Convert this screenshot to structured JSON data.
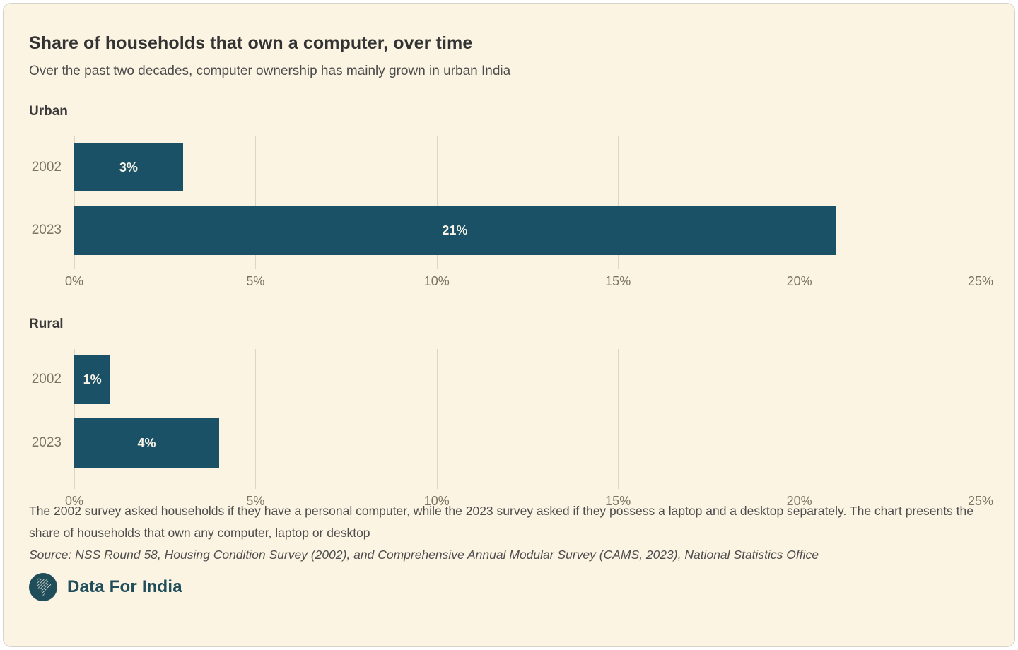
{
  "page": {
    "title": "Share of households that own a computer, over time",
    "subtitle": "Over the past two decades, computer ownership has mainly grown in urban India",
    "footnote": "The 2002 survey asked households if they have a personal computer, while the 2023 survey asked if they possess a laptop and a desktop separately. The chart presents the share of households that own any computer, laptop or desktop",
    "source": "Source: NSS Round 58, Housing Condition Survey (2002), and Comprehensive Annual Modular Survey (CAMS, 2023), National Statistics Office",
    "brand": "Data For India"
  },
  "colors": {
    "card_bg": "#fcf4e3",
    "bar": "#1a5166",
    "gridline": "#ddd5c3",
    "axis_text": "#7b7365",
    "brand": "#1f4d5a"
  },
  "chart_data": [
    {
      "type": "bar",
      "orientation": "horizontal",
      "title": "Urban",
      "categories": [
        "2002",
        "2023"
      ],
      "values": [
        3,
        21
      ],
      "value_labels": [
        "3%",
        "21%"
      ],
      "xlim": [
        0,
        25
      ],
      "x_ticks": [
        0,
        5,
        10,
        15,
        20,
        25
      ],
      "x_tick_labels": [
        "0%",
        "5%",
        "10%",
        "15%",
        "20%",
        "25%"
      ],
      "grid": true,
      "legend": "none",
      "unit": "%"
    },
    {
      "type": "bar",
      "orientation": "horizontal",
      "title": "Rural",
      "categories": [
        "2002",
        "2023"
      ],
      "values": [
        1,
        4
      ],
      "value_labels": [
        "1%",
        "4%"
      ],
      "xlim": [
        0,
        25
      ],
      "x_ticks": [
        0,
        5,
        10,
        15,
        20,
        25
      ],
      "x_tick_labels": [
        "0%",
        "5%",
        "10%",
        "15%",
        "20%",
        "25%"
      ],
      "grid": true,
      "legend": "none",
      "unit": "%"
    }
  ]
}
